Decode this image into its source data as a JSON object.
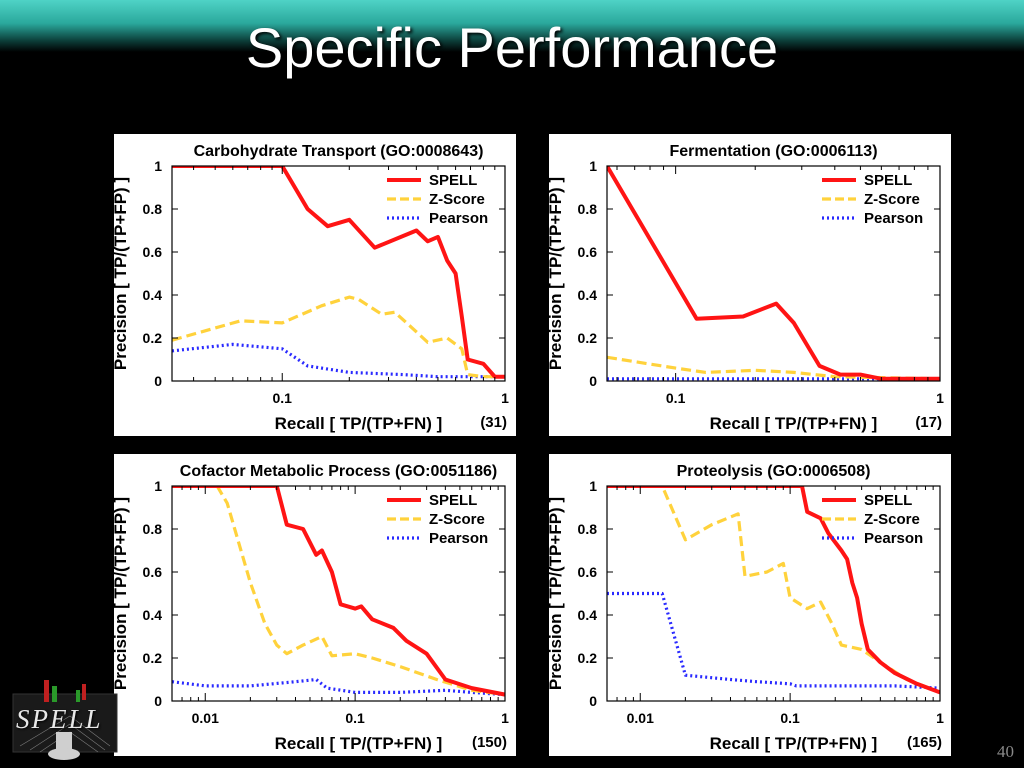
{
  "slide": {
    "title": "Specific Performance",
    "page_number": "40",
    "logo_text": "SPELL"
  },
  "colors": {
    "background": "#000000",
    "header_band": "#3cc7ba",
    "spell": "#ff1414",
    "zscore": "#ffd23c",
    "pearson": "#2a2aff",
    "plot_background": "#ffffff"
  },
  "chart_data": [
    {
      "type": "line",
      "title": "Carbohydrate Transport (GO:0008643)",
      "xlabel": "Recall [ TP/(TP+FN) ]",
      "ylabel": "Precision [ TP/(TP+FP) ]",
      "x_scale": "log",
      "xlim": [
        0.032,
        1
      ],
      "ylim": [
        0,
        1
      ],
      "x_ticks": [
        {
          "value": 0.1,
          "label": "0.1"
        },
        {
          "value": 1,
          "label": "1"
        }
      ],
      "y_ticks": [
        0,
        0.2,
        0.4,
        0.6,
        0.8,
        1
      ],
      "y_tick_labels": [
        "0",
        "0.2",
        "0.4",
        "0.6",
        "0.8",
        "1"
      ],
      "count_label": "(31)",
      "legend_position": "top-right",
      "series": [
        {
          "name": "SPELL",
          "style": "solid",
          "points": [
            [
              0.032,
              1
            ],
            [
              0.1,
              1
            ],
            [
              0.13,
              0.8
            ],
            [
              0.16,
              0.72
            ],
            [
              0.2,
              0.75
            ],
            [
              0.26,
              0.62
            ],
            [
              0.4,
              0.7
            ],
            [
              0.45,
              0.65
            ],
            [
              0.5,
              0.67
            ],
            [
              0.55,
              0.56
            ],
            [
              0.6,
              0.5
            ],
            [
              0.64,
              0.3
            ],
            [
              0.68,
              0.1
            ],
            [
              0.8,
              0.08
            ],
            [
              0.9,
              0.02
            ],
            [
              1,
              0.02
            ]
          ]
        },
        {
          "name": "Z-Score",
          "style": "dashed",
          "points": [
            [
              0.032,
              0.19
            ],
            [
              0.065,
              0.28
            ],
            [
              0.1,
              0.27
            ],
            [
              0.15,
              0.35
            ],
            [
              0.2,
              0.39
            ],
            [
              0.22,
              0.38
            ],
            [
              0.28,
              0.31
            ],
            [
              0.32,
              0.32
            ],
            [
              0.38,
              0.25
            ],
            [
              0.45,
              0.18
            ],
            [
              0.55,
              0.2
            ],
            [
              0.64,
              0.15
            ],
            [
              0.68,
              0.03
            ],
            [
              0.8,
              0.02
            ],
            [
              1,
              0.02
            ]
          ]
        },
        {
          "name": "Pearson",
          "style": "dotted",
          "points": [
            [
              0.032,
              0.14
            ],
            [
              0.06,
              0.17
            ],
            [
              0.1,
              0.15
            ],
            [
              0.13,
              0.07
            ],
            [
              0.2,
              0.04
            ],
            [
              0.35,
              0.03
            ],
            [
              0.5,
              0.02
            ],
            [
              1,
              0.02
            ]
          ]
        }
      ]
    },
    {
      "type": "line",
      "title": "Fermentation (GO:0006113)",
      "xlabel": "Recall [ TP/(TP+FN) ]",
      "ylabel": "Precision [ TP/(TP+FP) ]",
      "x_scale": "log",
      "xlim": [
        0.055,
        1
      ],
      "ylim": [
        0,
        1
      ],
      "x_ticks": [
        {
          "value": 0.1,
          "label": "0.1"
        },
        {
          "value": 1,
          "label": "1"
        }
      ],
      "y_ticks": [
        0,
        0.2,
        0.4,
        0.6,
        0.8,
        1
      ],
      "y_tick_labels": [
        "0",
        "0.2",
        "0.4",
        "0.6",
        "0.8",
        "1"
      ],
      "count_label": "(17)",
      "legend_position": "top-right",
      "series": [
        {
          "name": "SPELL",
          "style": "solid",
          "points": [
            [
              0.055,
              1
            ],
            [
              0.12,
              0.29
            ],
            [
              0.18,
              0.3
            ],
            [
              0.24,
              0.36
            ],
            [
              0.28,
              0.27
            ],
            [
              0.35,
              0.07
            ],
            [
              0.42,
              0.03
            ],
            [
              0.5,
              0.03
            ],
            [
              0.6,
              0.01
            ],
            [
              1,
              0.01
            ]
          ]
        },
        {
          "name": "Z-Score",
          "style": "dashed",
          "points": [
            [
              0.055,
              0.11
            ],
            [
              0.1,
              0.06
            ],
            [
              0.13,
              0.04
            ],
            [
              0.2,
              0.05
            ],
            [
              0.28,
              0.04
            ],
            [
              0.4,
              0.02
            ],
            [
              1,
              0.01
            ]
          ]
        },
        {
          "name": "Pearson",
          "style": "dotted",
          "points": [
            [
              0.055,
              0.01
            ],
            [
              1,
              0.01
            ]
          ]
        }
      ]
    },
    {
      "type": "line",
      "title": "Cofactor Metabolic Process (GO:0051186)",
      "xlabel": "Recall [ TP/(TP+FN) ]",
      "ylabel": "Precision [ TP/(TP+FP) ]",
      "x_scale": "log",
      "xlim": [
        0.006,
        1
      ],
      "ylim": [
        0,
        1
      ],
      "x_ticks": [
        {
          "value": 0.01,
          "label": "0.01"
        },
        {
          "value": 0.1,
          "label": "0.1"
        },
        {
          "value": 1,
          "label": "1"
        }
      ],
      "y_ticks": [
        0,
        0.2,
        0.4,
        0.6,
        0.8,
        1
      ],
      "y_tick_labels": [
        "0",
        "0.2",
        "0.4",
        "0.6",
        "0.8",
        "1"
      ],
      "count_label": "(150)",
      "legend_position": "top-right",
      "series": [
        {
          "name": "SPELL",
          "style": "solid",
          "points": [
            [
              0.006,
              1
            ],
            [
              0.03,
              1
            ],
            [
              0.035,
              0.82
            ],
            [
              0.045,
              0.8
            ],
            [
              0.055,
              0.68
            ],
            [
              0.06,
              0.7
            ],
            [
              0.07,
              0.6
            ],
            [
              0.08,
              0.45
            ],
            [
              0.1,
              0.43
            ],
            [
              0.11,
              0.44
            ],
            [
              0.13,
              0.38
            ],
            [
              0.18,
              0.34
            ],
            [
              0.22,
              0.28
            ],
            [
              0.3,
              0.22
            ],
            [
              0.4,
              0.1
            ],
            [
              0.6,
              0.06
            ],
            [
              1,
              0.03
            ]
          ]
        },
        {
          "name": "Z-Score",
          "style": "dashed",
          "points": [
            [
              0.006,
              1
            ],
            [
              0.012,
              1
            ],
            [
              0.014,
              0.92
            ],
            [
              0.02,
              0.55
            ],
            [
              0.025,
              0.36
            ],
            [
              0.03,
              0.26
            ],
            [
              0.035,
              0.22
            ],
            [
              0.045,
              0.26
            ],
            [
              0.06,
              0.3
            ],
            [
              0.07,
              0.21
            ],
            [
              0.1,
              0.22
            ],
            [
              0.13,
              0.2
            ],
            [
              0.2,
              0.16
            ],
            [
              0.35,
              0.1
            ],
            [
              0.6,
              0.05
            ],
            [
              1,
              0.03
            ]
          ]
        },
        {
          "name": "Pearson",
          "style": "dotted",
          "points": [
            [
              0.006,
              0.09
            ],
            [
              0.01,
              0.07
            ],
            [
              0.02,
              0.07
            ],
            [
              0.04,
              0.09
            ],
            [
              0.055,
              0.1
            ],
            [
              0.065,
              0.06
            ],
            [
              0.1,
              0.04
            ],
            [
              0.2,
              0.04
            ],
            [
              0.4,
              0.05
            ],
            [
              0.6,
              0.04
            ],
            [
              1,
              0.03
            ]
          ]
        }
      ]
    },
    {
      "type": "line",
      "title": "Proteolysis (GO:0006508)",
      "xlabel": "Recall [ TP/(TP+FN) ]",
      "ylabel": "Precision [ TP/(TP+FP) ]",
      "x_scale": "log",
      "xlim": [
        0.006,
        1
      ],
      "ylim": [
        0,
        1
      ],
      "x_ticks": [
        {
          "value": 0.01,
          "label": "0.01"
        },
        {
          "value": 0.1,
          "label": "0.1"
        },
        {
          "value": 1,
          "label": "1"
        }
      ],
      "y_ticks": [
        0,
        0.2,
        0.4,
        0.6,
        0.8,
        1
      ],
      "y_tick_labels": [
        "0",
        "0.2",
        "0.4",
        "0.6",
        "0.8",
        "1"
      ],
      "count_label": "(165)",
      "legend_position": "top-right",
      "series": [
        {
          "name": "SPELL",
          "style": "solid",
          "points": [
            [
              0.006,
              1
            ],
            [
              0.12,
              1
            ],
            [
              0.13,
              0.88
            ],
            [
              0.16,
              0.85
            ],
            [
              0.18,
              0.78
            ],
            [
              0.22,
              0.7
            ],
            [
              0.24,
              0.66
            ],
            [
              0.26,
              0.55
            ],
            [
              0.28,
              0.48
            ],
            [
              0.3,
              0.36
            ],
            [
              0.33,
              0.24
            ],
            [
              0.4,
              0.18
            ],
            [
              0.5,
              0.13
            ],
            [
              0.7,
              0.08
            ],
            [
              1,
              0.04
            ]
          ]
        },
        {
          "name": "Z-Score",
          "style": "dashed",
          "points": [
            [
              0.006,
              1
            ],
            [
              0.014,
              1
            ],
            [
              0.02,
              0.75
            ],
            [
              0.03,
              0.82
            ],
            [
              0.045,
              0.87
            ],
            [
              0.05,
              0.58
            ],
            [
              0.07,
              0.6
            ],
            [
              0.09,
              0.64
            ],
            [
              0.1,
              0.48
            ],
            [
              0.13,
              0.43
            ],
            [
              0.16,
              0.46
            ],
            [
              0.19,
              0.36
            ],
            [
              0.22,
              0.26
            ],
            [
              0.3,
              0.24
            ],
            [
              0.4,
              0.18
            ],
            [
              0.6,
              0.1
            ],
            [
              1,
              0.04
            ]
          ]
        },
        {
          "name": "Pearson",
          "style": "dotted",
          "points": [
            [
              0.006,
              0.5
            ],
            [
              0.014,
              0.5
            ],
            [
              0.02,
              0.12
            ],
            [
              0.04,
              0.1
            ],
            [
              0.06,
              0.09
            ],
            [
              0.1,
              0.08
            ],
            [
              0.11,
              0.07
            ],
            [
              0.3,
              0.07
            ],
            [
              0.5,
              0.07
            ],
            [
              1,
              0.06
            ]
          ]
        }
      ]
    }
  ]
}
